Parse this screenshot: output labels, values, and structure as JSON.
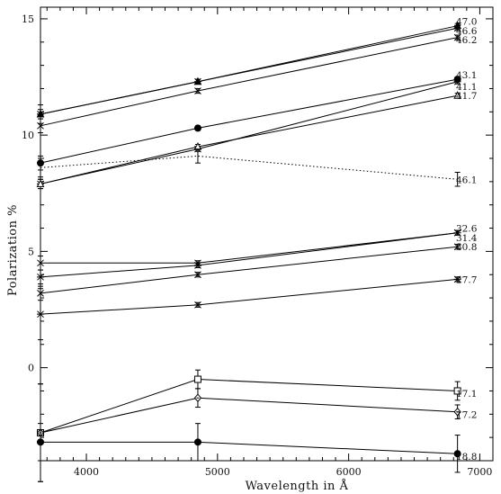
{
  "chart_data": {
    "type": "line",
    "xlabel": "Wavelength in Å",
    "ylabel": "Polarization %",
    "xlim": [
      3650,
      7100
    ],
    "ylim": [
      -4.0,
      15.5
    ],
    "xticks": [
      4000,
      5000,
      6000,
      7000
    ],
    "yticks": [
      0,
      5,
      10,
      15
    ],
    "x": [
      3650,
      4850,
      6830
    ],
    "series": [
      {
        "name": "47.0",
        "marker": "triangle",
        "line": "solid",
        "values": [
          10.9,
          12.3,
          14.7
        ],
        "errors": [
          0.4,
          0.1,
          0.1
        ]
      },
      {
        "name": "46.6",
        "marker": "star",
        "line": "solid",
        "values": [
          10.9,
          12.3,
          14.6
        ],
        "errors": [
          0.2,
          0.1,
          0.1
        ]
      },
      {
        "name": "46.2",
        "marker": "cross",
        "line": "solid",
        "values": [
          10.4,
          11.9,
          14.2
        ],
        "errors": [
          0.3,
          0.1,
          0.1
        ]
      },
      {
        "name": "43.1",
        "marker": "filled-circle",
        "line": "solid",
        "values": [
          8.8,
          10.3,
          12.4
        ],
        "errors": [
          0.3,
          0.1,
          0.1
        ]
      },
      {
        "name": "41.1",
        "marker": "star",
        "line": "solid",
        "values": [
          7.9,
          9.4,
          12.3
        ],
        "errors": [
          0.2,
          0.1,
          0.1
        ]
      },
      {
        "name": "41.7",
        "marker": "triangle-open",
        "line": "solid",
        "values": [
          7.9,
          9.5,
          11.7
        ],
        "errors": [
          0.2,
          0.1,
          0.1
        ]
      },
      {
        "name": "46.1",
        "marker": "none",
        "line": "dotted",
        "values": [
          8.6,
          9.1,
          8.1
        ],
        "errors": [
          0.4,
          0.3,
          0.3
        ]
      },
      {
        "name": "32.6",
        "marker": "cross",
        "line": "solid",
        "values": [
          4.5,
          4.5,
          5.8
        ],
        "errors": [
          0.3,
          0.1,
          0.1
        ]
      },
      {
        "name": "31.4",
        "marker": "star",
        "line": "solid",
        "values": [
          3.9,
          4.4,
          5.8
        ],
        "errors": [
          0.3,
          0.1,
          0.1
        ]
      },
      {
        "name": "30.8",
        "marker": "cross",
        "line": "solid",
        "values": [
          3.2,
          4.0,
          5.2
        ],
        "errors": [
          0.3,
          0.1,
          0.1
        ]
      },
      {
        "name": "27.7",
        "marker": "star",
        "line": "solid",
        "values": [
          2.3,
          2.7,
          3.8
        ],
        "errors": [
          1.1,
          0.1,
          0.1
        ]
      },
      {
        "name": "17.1",
        "marker": "open-square",
        "line": "solid",
        "values": [
          -2.8,
          -0.5,
          -1.0
        ],
        "errors": [
          2.1,
          0.4,
          0.4
        ]
      },
      {
        "name": "17.2",
        "marker": "open-diamond",
        "line": "solid",
        "values": [
          -2.8,
          -1.3,
          -1.9
        ],
        "errors": [
          2.1,
          0.4,
          0.3
        ]
      },
      {
        "name": "18.8",
        "marker": "filled-circle",
        "line": "solid",
        "values": [
          -3.2,
          -3.2,
          -3.7
        ],
        "errors": [
          0.8,
          0.8,
          0.8
        ]
      }
    ],
    "label_y": [
      14.9,
      14.5,
      14.1,
      12.6,
      12.1,
      11.7,
      8.1,
      6.0,
      5.6,
      5.2,
      3.8,
      -1.1,
      -2.0,
      -3.8
    ],
    "grid": false,
    "legend": "inline-right"
  }
}
